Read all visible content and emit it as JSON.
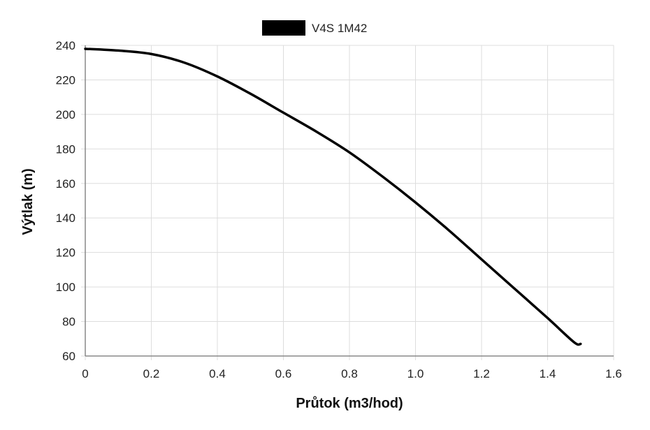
{
  "chart_data": {
    "type": "line",
    "title": "",
    "xlabel": "Průtok (m3/hod)",
    "ylabel": "Výtlak (m)",
    "xlim": [
      0,
      1.6
    ],
    "ylim": [
      60,
      240
    ],
    "x_ticks": [
      "0",
      "0.2",
      "0.4",
      "0.6",
      "0.8",
      "1.0",
      "1.2",
      "1.4",
      "1.6"
    ],
    "y_ticks": [
      "60",
      "80",
      "100",
      "120",
      "140",
      "160",
      "180",
      "200",
      "220",
      "240"
    ],
    "grid": true,
    "legend_position": "top-center",
    "series": [
      {
        "name": "V4S 1M42",
        "color": "#000000",
        "x": [
          0,
          0.1,
          0.2,
          0.3,
          0.4,
          0.5,
          0.6,
          0.7,
          0.8,
          0.9,
          1.0,
          1.1,
          1.2,
          1.3,
          1.4,
          1.48,
          1.5
        ],
        "y": [
          238,
          237,
          235,
          230,
          222,
          212,
          201,
          190,
          178,
          164,
          149,
          133,
          116,
          99,
          82,
          68,
          67
        ]
      }
    ]
  }
}
